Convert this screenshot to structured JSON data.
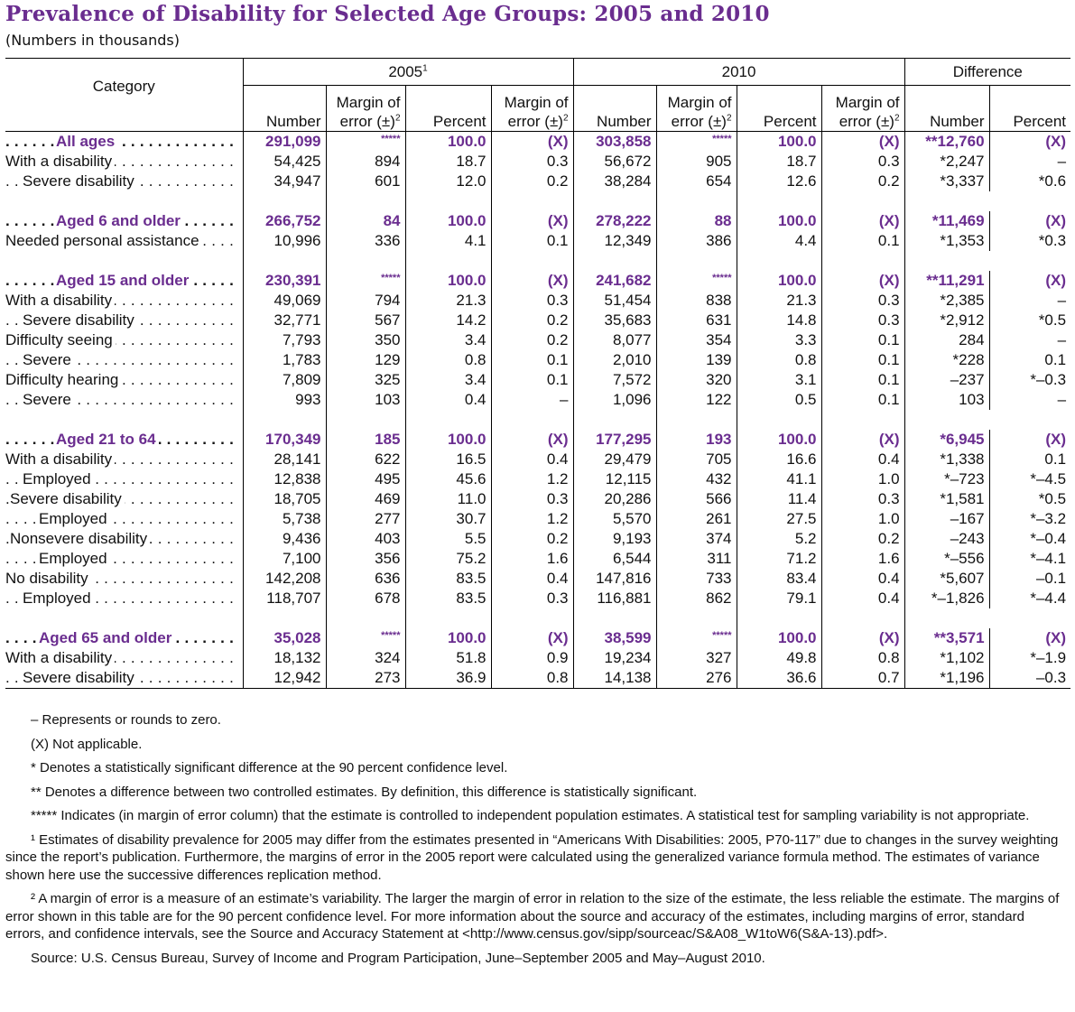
{
  "title": "Prevalence of Disability for Selected Age Groups: 2005 and 2010",
  "subtitle": "(Numbers in thousands)",
  "header": {
    "category": "Category",
    "groups": [
      "2005",
      "2010",
      "Difference"
    ],
    "group_sup": [
      "1",
      "",
      ""
    ],
    "cols": [
      "Number",
      "Margin of error (±)",
      "Percent",
      "Margin of error (±)",
      "Number",
      "Margin of error (±)",
      "Percent",
      "Margin of error (±)",
      "Number",
      "Percent"
    ],
    "margin_line1": "Margin of",
    "margin_line2": "error (±)",
    "margin_sup": "2"
  },
  "rows": [
    {
      "label": "All ages",
      "group": true,
      "indent": 2,
      "v": [
        "291,099",
        "*****",
        "100.0",
        "(X)",
        "303,858",
        "*****",
        "100.0",
        "(X)",
        "**12,760",
        "(X)"
      ]
    },
    {
      "label": "With a disability",
      "indent": 0,
      "v": [
        "54,425",
        "894",
        "18.7",
        "0.3",
        "56,672",
        "905",
        "18.7",
        "0.3",
        "*2,247",
        "–"
      ]
    },
    {
      "label": "Severe disability",
      "indent": 1,
      "v": [
        "34,947",
        "601",
        "12.0",
        "0.2",
        "38,284",
        "654",
        "12.6",
        "0.2",
        "*3,337",
        "*0.6"
      ]
    },
    {
      "spacer": true
    },
    {
      "label": "Aged 6 and older",
      "group": true,
      "indent": 2,
      "v": [
        "266,752",
        "84",
        "100.0",
        "(X)",
        "278,222",
        "88",
        "100.0",
        "(X)",
        "*11,469",
        "(X)"
      ]
    },
    {
      "label": "Needed personal assistance",
      "indent": 0,
      "v": [
        "10,996",
        "336",
        "4.1",
        "0.1",
        "12,349",
        "386",
        "4.4",
        "0.1",
        "*1,353",
        "*0.3"
      ]
    },
    {
      "spacer": true
    },
    {
      "label": "Aged 15 and older",
      "group": true,
      "indent": 2,
      "v": [
        "230,391",
        "*****",
        "100.0",
        "(X)",
        "241,682",
        "*****",
        "100.0",
        "(X)",
        "**11,291",
        "(X)"
      ]
    },
    {
      "label": "With a disability",
      "indent": 0,
      "v": [
        "49,069",
        "794",
        "21.3",
        "0.3",
        "51,454",
        "838",
        "21.3",
        "0.3",
        "*2,385",
        "–"
      ]
    },
    {
      "label": "Severe disability",
      "indent": 1,
      "v": [
        "32,771",
        "567",
        "14.2",
        "0.2",
        "35,683",
        "631",
        "14.8",
        "0.3",
        "*2,912",
        "*0.5"
      ]
    },
    {
      "label": "Difficulty seeing",
      "indent": 0,
      "v": [
        "7,793",
        "350",
        "3.4",
        "0.2",
        "8,077",
        "354",
        "3.3",
        "0.1",
        "284",
        "–"
      ]
    },
    {
      "label": "Severe",
      "indent": 1,
      "v": [
        "1,783",
        "129",
        "0.8",
        "0.1",
        "2,010",
        "139",
        "0.8",
        "0.1",
        "*228",
        "0.1"
      ]
    },
    {
      "label": "Difficulty hearing",
      "indent": 0,
      "v": [
        "7,809",
        "325",
        "3.4",
        "0.1",
        "7,572",
        "320",
        "3.1",
        "0.1",
        "–237",
        "*–0.3"
      ]
    },
    {
      "label": "Severe",
      "indent": 1,
      "v": [
        "993",
        "103",
        "0.4",
        "–",
        "1,096",
        "122",
        "0.5",
        "0.1",
        "103",
        "–"
      ]
    },
    {
      "spacer": true
    },
    {
      "label": "Aged 21 to 64",
      "group": true,
      "indent": 2,
      "v": [
        "170,349",
        "185",
        "100.0",
        "(X)",
        "177,295",
        "193",
        "100.0",
        "(X)",
        "*6,945",
        "(X)"
      ]
    },
    {
      "label": "With a disability",
      "indent": 0,
      "v": [
        "28,141",
        "622",
        "16.5",
        "0.4",
        "29,479",
        "705",
        "16.6",
        "0.4",
        "*1,338",
        "0.1"
      ]
    },
    {
      "label": "Employed",
      "indent": 1,
      "v": [
        "12,838",
        "495",
        "45.6",
        "1.2",
        "12,115",
        "432",
        "41.1",
        "1.0",
        "*–723",
        "*–4.5"
      ]
    },
    {
      "label": "Severe disability",
      "indent": 3,
      "v": [
        "18,705",
        "469",
        "11.0",
        "0.3",
        "20,286",
        "566",
        "11.4",
        "0.3",
        "*1,581",
        "*0.5"
      ]
    },
    {
      "label": "Employed",
      "indent": 4,
      "v": [
        "5,738",
        "277",
        "30.7",
        "1.2",
        "5,570",
        "261",
        "27.5",
        "1.0",
        "–167",
        "*–3.2"
      ]
    },
    {
      "label": "Nonsevere disability",
      "indent": 3,
      "v": [
        "9,436",
        "403",
        "5.5",
        "0.2",
        "9,193",
        "374",
        "5.2",
        "0.2",
        "–243",
        "*–0.4"
      ]
    },
    {
      "label": "Employed",
      "indent": 4,
      "v": [
        "7,100",
        "356",
        "75.2",
        "1.6",
        "6,544",
        "311",
        "71.2",
        "1.6",
        "*–556",
        "*–4.1"
      ]
    },
    {
      "label": "No disability",
      "indent": 0,
      "v": [
        "142,208",
        "636",
        "83.5",
        "0.4",
        "147,816",
        "733",
        "83.4",
        "0.4",
        "*5,607",
        "–0.1"
      ]
    },
    {
      "label": "Employed",
      "indent": 1,
      "v": [
        "118,707",
        "678",
        "83.5",
        "0.3",
        "116,881",
        "862",
        "79.1",
        "0.4",
        "*–1,826",
        "*–4.4"
      ]
    },
    {
      "spacer": true
    },
    {
      "label": "Aged 65 and older",
      "group": true,
      "indent": 5,
      "v": [
        "35,028",
        "*****",
        "100.0",
        "(X)",
        "38,599",
        "*****",
        "100.0",
        "(X)",
        "**3,571",
        "(X)"
      ]
    },
    {
      "label": "With a disability",
      "indent": 0,
      "v": [
        "18,132",
        "324",
        "51.8",
        "0.9",
        "19,234",
        "327",
        "49.8",
        "0.8",
        "*1,102",
        "*–1.9"
      ]
    },
    {
      "label": "Severe disability",
      "indent": 1,
      "v": [
        "12,942",
        "273",
        "36.9",
        "0.8",
        "14,138",
        "276",
        "36.6",
        "0.7",
        "*1,196",
        "–0.3"
      ]
    }
  ],
  "notes": [
    "– Represents or rounds to zero.",
    "(X) Not applicable.",
    "* Denotes a statistically significant difference at the 90 percent confidence level.",
    "** Denotes a difference between two controlled estimates. By definition, this difference is statistically significant.",
    "***** Indicates (in margin of error column) that the estimate is controlled to independent population estimates. A statistical test for sampling variability is not appropriate.",
    "¹ Estimates of disability prevalence for 2005 may differ from the estimates presented in “Americans With Disabilities: 2005, P70-117” due to changes in the survey weighting since the report’s publication. Furthermore, the margins of error in the 2005 report were calculated using the generalized variance formula method. The estimates of variance shown here use the successive differences replication method.",
    "² A margin of error is a measure of an estimate’s variability. The larger the margin of error in relation to the size of the estimate, the less reliable the estimate. The margins of error shown in this table are for the 90 percent confidence level. For more information about the source and accuracy of the estimates, including margins of error, standard errors, and confidence intervals, see the Source and Accuracy Statement at <http://www.census.gov/sipp/sourceac/S&A08_W1toW6(S&A-13).pdf>.",
    "Source: U.S. Census Bureau, Survey of Income and Program Participation, June–September 2005 and May–August 2010."
  ],
  "colors": {
    "accent": "#6a2d8f",
    "text": "#111111"
  }
}
